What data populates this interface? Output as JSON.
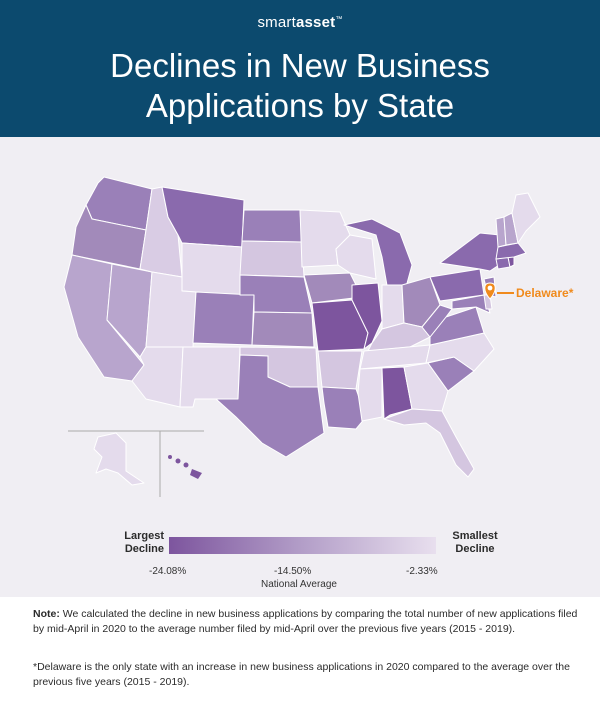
{
  "header": {
    "brand_part1": "smart",
    "brand_part2": "asset",
    "brand_mark": "™",
    "title_line1": "Declines in New Business",
    "title_line2": "Applications by State"
  },
  "map": {
    "callout_label": "Delaware*",
    "marker_icon": "map-pin-icon",
    "colors": {
      "largest": "#7d559e",
      "mid": "#b39ec8",
      "smallest": "#e8dfee",
      "callout": "#f08a1c",
      "header": "#0c4a6e"
    }
  },
  "legend": {
    "left_label_line1": "Largest",
    "left_label_line2": "Decline",
    "right_label_line1": "Smallest",
    "right_label_line2": "Decline",
    "min_value": "-24.08%",
    "mid_value": "-14.50%",
    "max_value": "-2.33%",
    "mid_caption": "National Average"
  },
  "notes": {
    "note_label": "Note:",
    "note_text": " We calculated the decline in new business applications by comparing the total number of new applications filed by mid-April in 2020 to the average number filed by mid-April over the previous five years (2015 - 2019).",
    "footnote": "*Delaware is the only state with an increase in new business applications in 2020 compared to the average over the previous five years (2015 - 2019)."
  }
}
